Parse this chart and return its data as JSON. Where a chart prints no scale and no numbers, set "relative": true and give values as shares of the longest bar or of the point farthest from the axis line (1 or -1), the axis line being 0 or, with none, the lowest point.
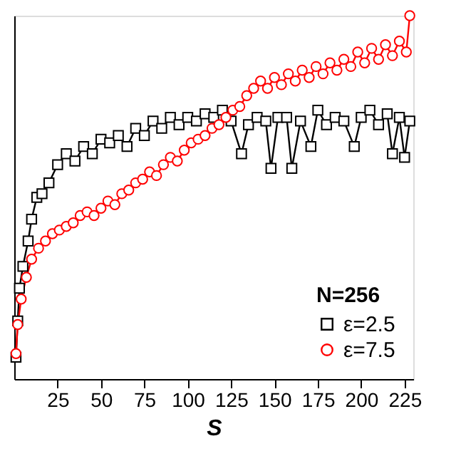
{
  "chart_data": {
    "type": "line",
    "xlabel": "S",
    "legend_title": "N=256",
    "relative": true,
    "legend": "bottom right",
    "grid": false,
    "line_style": "solid",
    "xlim": [
      0,
      230
    ],
    "xticks": [
      25,
      50,
      75,
      100,
      125,
      150,
      175,
      200,
      225
    ],
    "series": [
      {
        "name": "ε=2.5",
        "color": "#000000",
        "marker": "square",
        "x": [
          1,
          2,
          3,
          5,
          8,
          10,
          13,
          16,
          20,
          25,
          30,
          35,
          40,
          45,
          50,
          55,
          60,
          65,
          70,
          75,
          80,
          85,
          90,
          95,
          100,
          105,
          110,
          115,
          120,
          125,
          131,
          135,
          140,
          145,
          148,
          152,
          157,
          160,
          165,
          171,
          175,
          180,
          185,
          190,
          196,
          200,
          205,
          210,
          215,
          218,
          222,
          225,
          228
        ],
        "values": [
          0.06,
          0.16,
          0.25,
          0.31,
          0.38,
          0.44,
          0.5,
          0.51,
          0.54,
          0.59,
          0.62,
          0.6,
          0.64,
          0.62,
          0.66,
          0.65,
          0.67,
          0.64,
          0.69,
          0.67,
          0.71,
          0.69,
          0.72,
          0.7,
          0.72,
          0.71,
          0.73,
          0.72,
          0.74,
          0.71,
          0.62,
          0.7,
          0.72,
          0.71,
          0.58,
          0.72,
          0.72,
          0.58,
          0.71,
          0.64,
          0.74,
          0.7,
          0.72,
          0.71,
          0.64,
          0.72,
          0.74,
          0.7,
          0.73,
          0.62,
          0.72,
          0.61,
          0.71
        ]
      },
      {
        "name": "ε=7.5",
        "color": "#ff0000",
        "marker": "circle",
        "x": [
          1,
          2,
          4,
          7,
          10,
          14,
          18,
          22,
          26,
          30,
          34,
          38,
          42,
          46,
          50,
          54,
          58,
          62,
          66,
          70,
          74,
          78,
          82,
          86,
          90,
          94,
          98,
          102,
          106,
          110,
          114,
          118,
          122,
          126,
          130,
          134,
          138,
          142,
          146,
          150,
          154,
          158,
          162,
          166,
          170,
          174,
          178,
          182,
          186,
          190,
          194,
          198,
          202,
          206,
          210,
          214,
          218,
          222,
          226,
          228
        ],
        "values": [
          0.07,
          0.15,
          0.22,
          0.28,
          0.33,
          0.36,
          0.38,
          0.4,
          0.41,
          0.42,
          0.43,
          0.45,
          0.46,
          0.45,
          0.47,
          0.49,
          0.48,
          0.51,
          0.52,
          0.54,
          0.55,
          0.57,
          0.56,
          0.59,
          0.61,
          0.6,
          0.63,
          0.65,
          0.66,
          0.67,
          0.69,
          0.7,
          0.72,
          0.74,
          0.75,
          0.78,
          0.8,
          0.82,
          0.8,
          0.83,
          0.81,
          0.84,
          0.82,
          0.85,
          0.83,
          0.86,
          0.84,
          0.87,
          0.85,
          0.88,
          0.86,
          0.9,
          0.87,
          0.91,
          0.88,
          0.92,
          0.89,
          0.93,
          0.9,
          1.0
        ]
      }
    ]
  }
}
